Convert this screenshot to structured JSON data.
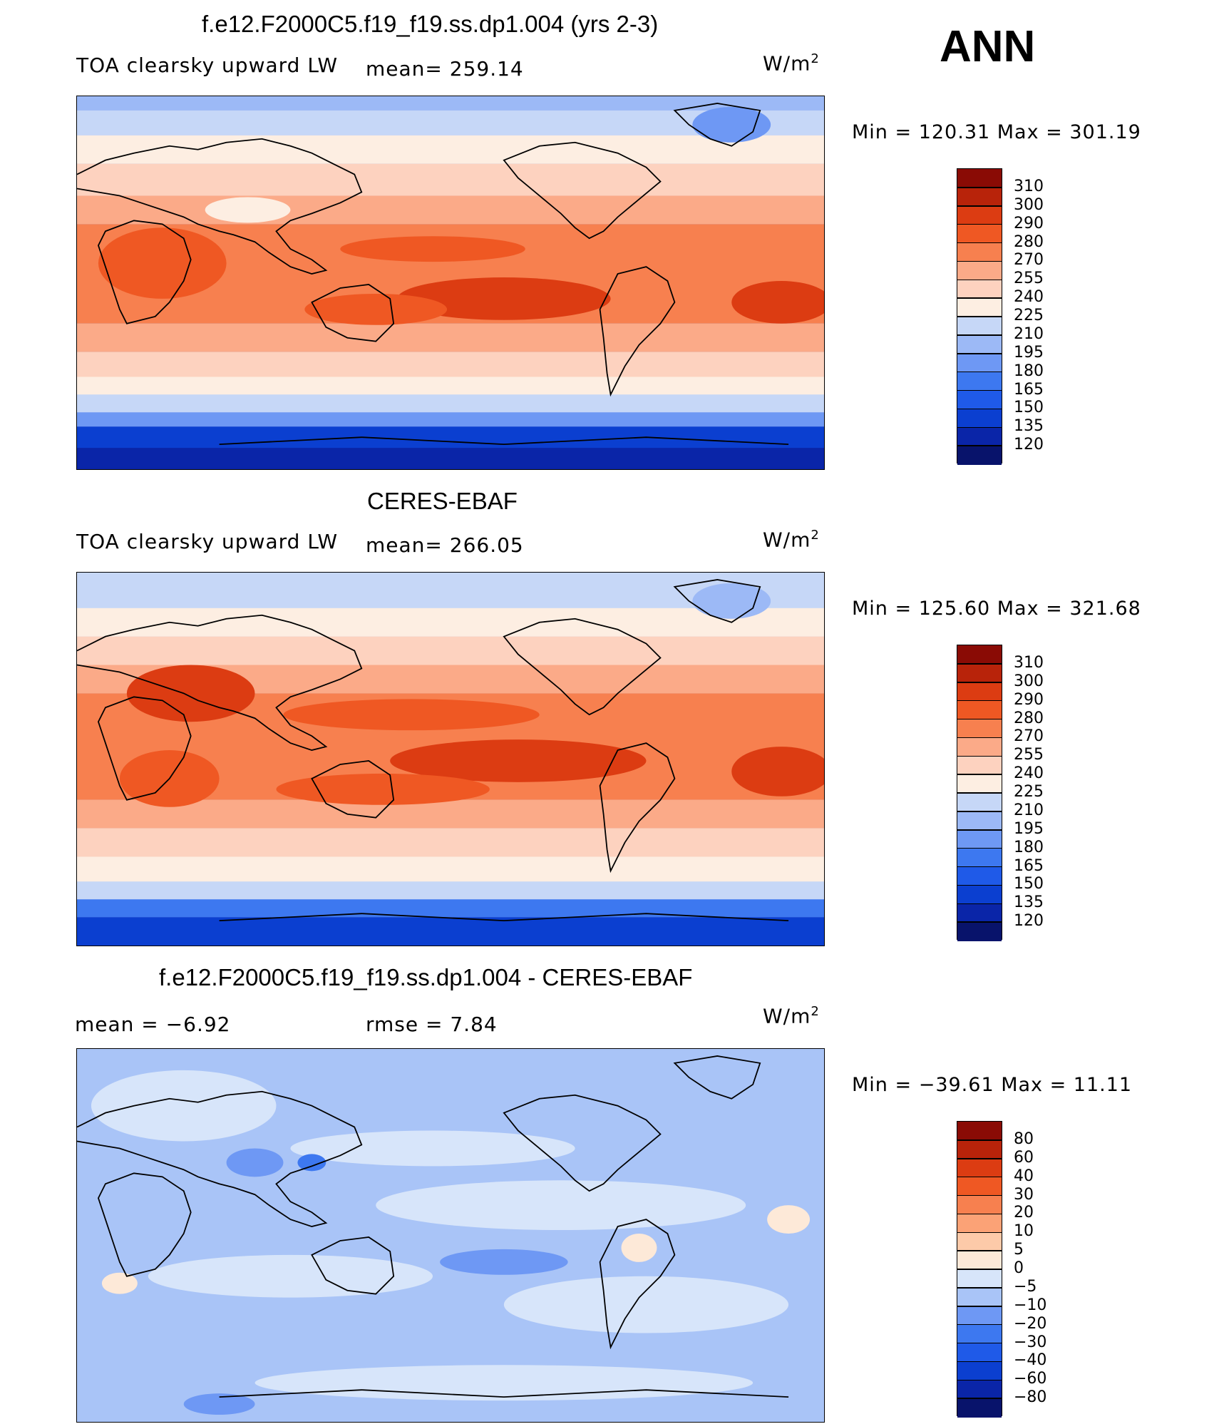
{
  "season": "ANN",
  "colors": {
    "abs_levels": [
      "#08136b",
      "#0a25a8",
      "#0b3fd0",
      "#1f5ae8",
      "#3d78f0",
      "#6e98f4",
      "#9cb9f6",
      "#c6d7f7",
      "#fdeee2",
      "#fdd2bf",
      "#fbaa88",
      "#f7804f",
      "#ef5823",
      "#dc3c12",
      "#b8230a",
      "#8a0b05"
    ],
    "diff_levels": [
      "#08136b",
      "#0a25a8",
      "#0b3fd0",
      "#1f5ae8",
      "#3d78f0",
      "#6e98f4",
      "#a9c4f7",
      "#d7e5fa",
      "#fde9d8",
      "#fdcaa9",
      "#fba276",
      "#f7804f",
      "#ef5823",
      "#dc3c12",
      "#b8230a",
      "#8a0b05"
    ],
    "land_line": "#000000"
  },
  "panels": [
    {
      "title": "f.e12.F2000C5.f19_f19.ss.dp1.004 (yrs 2-3)",
      "left_label": "TOA clearsky upward LW",
      "center_label": "mean= 259.14",
      "units_base": "W/m",
      "units_exp": "2",
      "minmax": "Min  =  120.31  Max  =  301.19",
      "colorbar_labels": [
        "310",
        "300",
        "290",
        "280",
        "270",
        "255",
        "240",
        "225",
        "210",
        "195",
        "180",
        "165",
        "150",
        "135",
        "120"
      ]
    },
    {
      "title": "CERES-EBAF",
      "left_label": "TOA clearsky upward LW",
      "center_label": "mean= 266.05",
      "units_base": "W/m",
      "units_exp": "2",
      "minmax": "Min  =  125.60  Max  =  321.68",
      "colorbar_labels": [
        "310",
        "300",
        "290",
        "280",
        "270",
        "255",
        "240",
        "225",
        "210",
        "195",
        "180",
        "165",
        "150",
        "135",
        "120"
      ]
    },
    {
      "title": "f.e12.F2000C5.f19_f19.ss.dp1.004 - CERES-EBAF",
      "left_label": "mean =    −6.92",
      "center_label": "rmse =     7.84",
      "units_base": "W/m",
      "units_exp": "2",
      "minmax": "Min  =  −39.61  Max  =     11.11",
      "colorbar_labels": [
        "80",
        "60",
        "40",
        "30",
        "20",
        "10",
        "5",
        "0",
        "−5",
        "−10",
        "−20",
        "−30",
        "−40",
        "−60",
        "−80"
      ]
    }
  ]
}
